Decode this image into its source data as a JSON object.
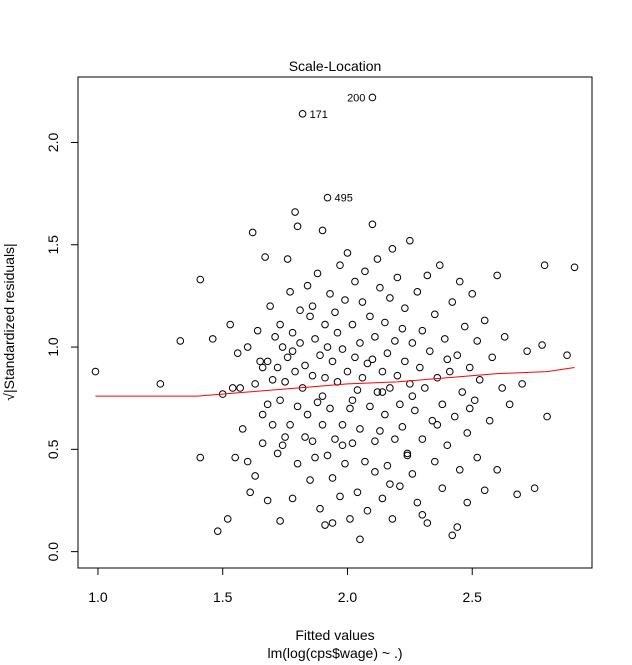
{
  "chart_data": {
    "type": "scatter",
    "title": "Scale-Location",
    "xlabel": "Fitted values",
    "xlabel_sub": "lm(log(cps$wage) ~ .)",
    "ylabel": "√|Standardized residuals|",
    "xlim": [
      0.92,
      2.98
    ],
    "ylim": [
      -0.08,
      2.32
    ],
    "xticks": [
      1.0,
      1.5,
      2.0,
      2.5
    ],
    "xtick_labels": [
      "1.0",
      "1.5",
      "2.0",
      "2.5"
    ],
    "yticks": [
      0.0,
      0.5,
      1.0,
      1.5,
      2.0
    ],
    "ytick_labels": [
      "0.0",
      "0.5",
      "1.0",
      "1.5",
      "2.0"
    ],
    "series": [
      {
        "name": "residual points",
        "points": [
          [
            0.99,
            0.88
          ],
          [
            1.25,
            0.82
          ],
          [
            1.33,
            1.03
          ],
          [
            1.41,
            1.33
          ],
          [
            1.41,
            0.46
          ],
          [
            1.46,
            1.04
          ],
          [
            1.48,
            0.1
          ],
          [
            1.5,
            0.77
          ],
          [
            1.52,
            0.16
          ],
          [
            1.53,
            1.11
          ],
          [
            1.54,
            0.8
          ],
          [
            1.55,
            0.46
          ],
          [
            1.56,
            0.97
          ],
          [
            1.57,
            0.8
          ],
          [
            1.58,
            0.6
          ],
          [
            1.6,
            1.0
          ],
          [
            1.6,
            0.44
          ],
          [
            1.61,
            0.29
          ],
          [
            1.62,
            1.56
          ],
          [
            1.63,
            0.82
          ],
          [
            1.63,
            0.37
          ],
          [
            1.64,
            1.08
          ],
          [
            1.65,
            0.93
          ],
          [
            1.66,
            0.67
          ],
          [
            1.66,
            0.53
          ],
          [
            1.67,
            1.44
          ],
          [
            1.68,
            0.93
          ],
          [
            1.68,
            0.72
          ],
          [
            1.68,
            0.25
          ],
          [
            1.69,
            1.2
          ],
          [
            1.7,
            0.84
          ],
          [
            1.7,
            0.62
          ],
          [
            1.71,
            1.05
          ],
          [
            1.72,
            0.9
          ],
          [
            1.72,
            0.48
          ],
          [
            1.73,
            1.11
          ],
          [
            1.73,
            0.74
          ],
          [
            1.73,
            0.15
          ],
          [
            1.74,
            1.0
          ],
          [
            1.75,
            0.83
          ],
          [
            1.75,
            0.56
          ],
          [
            1.76,
            1.43
          ],
          [
            1.76,
            0.95
          ],
          [
            1.77,
            1.27
          ],
          [
            1.77,
            0.62
          ],
          [
            1.78,
            1.07
          ],
          [
            1.78,
            0.26
          ],
          [
            1.79,
            1.66
          ],
          [
            1.79,
            0.88
          ],
          [
            1.8,
            1.59
          ],
          [
            1.8,
            0.71
          ],
          [
            1.8,
            0.43
          ],
          [
            1.81,
            1.18
          ],
          [
            1.81,
            1.02
          ],
          [
            1.82,
            2.14
          ],
          [
            1.82,
            0.8
          ],
          [
            1.83,
            0.56
          ],
          [
            1.83,
            0.91
          ],
          [
            1.84,
            1.3
          ],
          [
            1.84,
            0.67
          ],
          [
            1.85,
            1.15
          ],
          [
            1.85,
            0.35
          ],
          [
            1.86,
            0.86
          ],
          [
            1.86,
            1.2
          ],
          [
            1.87,
            0.46
          ],
          [
            1.87,
            1.04
          ],
          [
            1.88,
            0.73
          ],
          [
            1.88,
            1.36
          ],
          [
            1.89,
            0.96
          ],
          [
            1.89,
            0.21
          ],
          [
            1.9,
            1.57
          ],
          [
            1.9,
            0.62
          ],
          [
            1.91,
            1.11
          ],
          [
            1.91,
            0.85
          ],
          [
            1.91,
            0.13
          ],
          [
            1.92,
            1.73
          ],
          [
            1.92,
            1.0
          ],
          [
            1.92,
            0.47
          ],
          [
            1.93,
            1.26
          ],
          [
            1.93,
            0.7
          ],
          [
            1.94,
            0.93
          ],
          [
            1.94,
            0.36
          ],
          [
            1.95,
            1.17
          ],
          [
            1.95,
            0.55
          ],
          [
            1.96,
            0.83
          ],
          [
            1.96,
            1.07
          ],
          [
            1.97,
            1.4
          ],
          [
            1.97,
            0.27
          ],
          [
            1.98,
            0.99
          ],
          [
            1.98,
            0.62
          ],
          [
            1.99,
            1.23
          ],
          [
            1.99,
            0.43
          ],
          [
            2.0,
            0.88
          ],
          [
            2.0,
            1.46
          ],
          [
            2.01,
            0.7
          ],
          [
            2.01,
            0.16
          ],
          [
            2.02,
            1.11
          ],
          [
            2.02,
            0.53
          ],
          [
            2.03,
            0.95
          ],
          [
            2.03,
            1.32
          ],
          [
            2.04,
            0.79
          ],
          [
            2.04,
            0.29
          ],
          [
            2.05,
            1.02
          ],
          [
            2.05,
            0.6
          ],
          [
            2.06,
            1.22
          ],
          [
            2.06,
            0.85
          ],
          [
            2.07,
            1.37
          ],
          [
            2.07,
            0.44
          ],
          [
            2.08,
            0.92
          ],
          [
            2.08,
            0.2
          ],
          [
            2.09,
            1.15
          ],
          [
            2.09,
            0.71
          ],
          [
            2.1,
            2.22
          ],
          [
            2.1,
            1.6
          ],
          [
            2.1,
            0.94
          ],
          [
            2.11,
            0.39
          ],
          [
            2.11,
            1.05
          ],
          [
            2.12,
            1.43
          ],
          [
            2.12,
            0.78
          ],
          [
            2.13,
            0.59
          ],
          [
            2.13,
            1.29
          ],
          [
            2.14,
            0.88
          ],
          [
            2.14,
            0.26
          ],
          [
            2.15,
            1.12
          ],
          [
            2.15,
            0.67
          ],
          [
            2.16,
            0.97
          ],
          [
            2.16,
            0.42
          ],
          [
            2.17,
            1.24
          ],
          [
            2.17,
            0.8
          ],
          [
            2.18,
            1.48
          ],
          [
            2.18,
            0.16
          ],
          [
            2.19,
            1.03
          ],
          [
            2.19,
            0.55
          ],
          [
            2.2,
            0.86
          ],
          [
            2.2,
            1.34
          ],
          [
            2.21,
            0.72
          ],
          [
            2.21,
            0.32
          ],
          [
            2.22,
            1.09
          ],
          [
            2.22,
            0.61
          ],
          [
            2.23,
            0.93
          ],
          [
            2.23,
            1.19
          ],
          [
            2.24,
            0.47
          ],
          [
            2.25,
            0.82
          ],
          [
            2.25,
            1.52
          ],
          [
            2.26,
            0.38
          ],
          [
            2.26,
            1.02
          ],
          [
            2.27,
            0.69
          ],
          [
            2.28,
            1.27
          ],
          [
            2.28,
            0.24
          ],
          [
            2.29,
            0.9
          ],
          [
            2.3,
            1.08
          ],
          [
            2.3,
            0.55
          ],
          [
            2.31,
            0.8
          ],
          [
            2.32,
            1.35
          ],
          [
            2.32,
            0.14
          ],
          [
            2.33,
            0.98
          ],
          [
            2.34,
            0.64
          ],
          [
            2.35,
            1.16
          ],
          [
            2.35,
            0.44
          ],
          [
            2.36,
            0.85
          ],
          [
            2.37,
            1.4
          ],
          [
            2.38,
            0.72
          ],
          [
            2.38,
            0.31
          ],
          [
            2.39,
            1.04
          ],
          [
            2.4,
            0.52
          ],
          [
            2.41,
            0.88
          ],
          [
            2.42,
            1.22
          ],
          [
            2.42,
            0.08
          ],
          [
            2.43,
            0.66
          ],
          [
            2.44,
            0.96
          ],
          [
            2.45,
            1.32
          ],
          [
            2.45,
            0.4
          ],
          [
            2.46,
            0.78
          ],
          [
            2.47,
            1.1
          ],
          [
            2.48,
            0.58
          ],
          [
            2.48,
            0.24
          ],
          [
            2.49,
            0.9
          ],
          [
            2.5,
            1.26
          ],
          [
            2.51,
            0.74
          ],
          [
            2.52,
            1.03
          ],
          [
            2.52,
            0.46
          ],
          [
            2.53,
            0.84
          ],
          [
            2.55,
            1.13
          ],
          [
            2.55,
            0.3
          ],
          [
            2.57,
            0.64
          ],
          [
            2.58,
            0.95
          ],
          [
            2.6,
            1.35
          ],
          [
            2.6,
            0.4
          ],
          [
            2.62,
            0.8
          ],
          [
            2.63,
            1.05
          ],
          [
            2.65,
            0.72
          ],
          [
            2.68,
            0.28
          ],
          [
            2.7,
            0.82
          ],
          [
            2.72,
            0.98
          ],
          [
            2.75,
            0.31
          ],
          [
            2.78,
            1.01
          ],
          [
            2.79,
            1.4
          ],
          [
            2.8,
            0.66
          ],
          [
            2.88,
            0.96
          ],
          [
            2.91,
            1.39
          ],
          [
            1.94,
            0.14
          ],
          [
            2.05,
            0.06
          ],
          [
            2.17,
            0.33
          ],
          [
            2.3,
            0.18
          ],
          [
            2.44,
            0.12
          ],
          [
            1.66,
            0.9
          ],
          [
            1.74,
            0.52
          ],
          [
            1.86,
            0.54
          ],
          [
            1.98,
            0.52
          ],
          [
            2.11,
            0.54
          ],
          [
            2.24,
            0.48
          ],
          [
            2.36,
            0.62
          ],
          [
            2.49,
            0.7
          ],
          [
            1.78,
            0.98
          ],
          [
            1.9,
            0.76
          ],
          [
            2.02,
            0.74
          ],
          [
            2.14,
            0.78
          ],
          [
            2.26,
            0.76
          ],
          [
            2.4,
            0.94
          ]
        ]
      },
      {
        "name": "lowess smooth",
        "line": [
          [
            0.99,
            0.76
          ],
          [
            1.2,
            0.76
          ],
          [
            1.4,
            0.76
          ],
          [
            1.6,
            0.78
          ],
          [
            1.8,
            0.8
          ],
          [
            2.0,
            0.82
          ],
          [
            2.2,
            0.83
          ],
          [
            2.4,
            0.85
          ],
          [
            2.6,
            0.87
          ],
          [
            2.8,
            0.88
          ],
          [
            2.91,
            0.9
          ]
        ]
      }
    ],
    "annotations": [
      {
        "label": "200",
        "x": 2.1,
        "y": 2.22,
        "side": "left"
      },
      {
        "label": "171",
        "x": 1.82,
        "y": 2.14,
        "side": "right"
      },
      {
        "label": "495",
        "x": 1.92,
        "y": 1.73,
        "side": "right"
      }
    ],
    "colors": {
      "points": "#000000",
      "smooth": "#ff0000",
      "axes": "#000000"
    }
  }
}
